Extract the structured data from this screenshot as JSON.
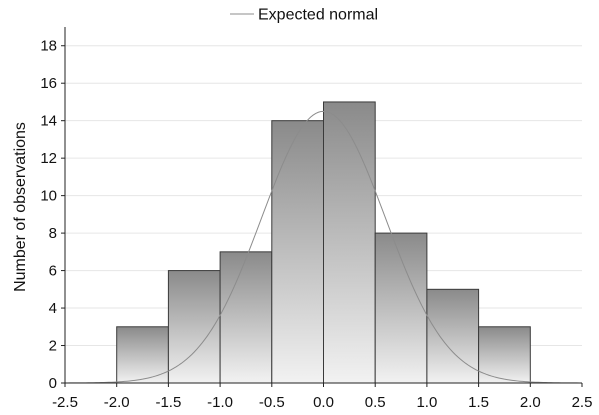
{
  "chart_data": {
    "type": "bar",
    "title": "",
    "xlabel": "",
    "ylabel": "Number of observations",
    "legend": {
      "entries": [
        "Expected normal"
      ],
      "placement": "top-center"
    },
    "xlim": [
      -2.5,
      2.5
    ],
    "ylim": [
      0,
      19
    ],
    "x_ticks": [
      -2.5,
      -2.0,
      -1.5,
      -1.0,
      -0.5,
      0.0,
      0.5,
      1.0,
      1.5,
      2.0,
      2.5
    ],
    "x_tick_labels": [
      "-2.5",
      "-2.0",
      "-1.5",
      "-1.0",
      "-0.5",
      "0.0",
      "0.5",
      "1.0",
      "1.5",
      "2.0",
      "2.5"
    ],
    "y_ticks": [
      0,
      2,
      4,
      6,
      8,
      10,
      12,
      14,
      16,
      18
    ],
    "y_tick_labels": [
      "0",
      "2",
      "4",
      "6",
      "8",
      "10",
      "12",
      "14",
      "16",
      "18"
    ],
    "grid": true,
    "bins": [
      {
        "from": -2.0,
        "to": -1.5,
        "count": 3
      },
      {
        "from": -1.5,
        "to": -1.0,
        "count": 6
      },
      {
        "from": -1.0,
        "to": -0.5,
        "count": 7
      },
      {
        "from": -0.5,
        "to": 0.0,
        "count": 14
      },
      {
        "from": 0.0,
        "to": 0.5,
        "count": 15
      },
      {
        "from": 0.5,
        "to": 1.0,
        "count": 8
      },
      {
        "from": 1.0,
        "to": 1.5,
        "count": 5
      },
      {
        "from": 1.5,
        "to": 2.0,
        "count": 3
      }
    ],
    "expected_normal": {
      "mean": 0.0,
      "peak": 14.5,
      "sd": 0.6
    },
    "colors": {
      "bar_top": "#8a8a8a",
      "bar_bottom": "#f2f2f2",
      "curve": "#8c8c8c"
    }
  }
}
